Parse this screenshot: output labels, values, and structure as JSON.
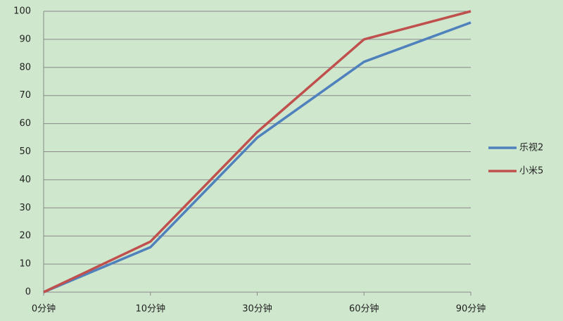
{
  "chart_data": {
    "type": "line",
    "categories": [
      "0分钟",
      "10分钟",
      "30分钟",
      "60分钟",
      "90分钟"
    ],
    "series": [
      {
        "name": "乐视2",
        "color": "#4f81bd",
        "values": [
          0,
          16,
          55,
          82,
          96
        ]
      },
      {
        "name": "小米5",
        "color": "#c0504d",
        "values": [
          0,
          18,
          57,
          90,
          100
        ]
      }
    ],
    "ylim": [
      0,
      100
    ],
    "yticks": [
      0,
      10,
      20,
      30,
      40,
      50,
      60,
      70,
      80,
      90,
      100
    ],
    "grid": true,
    "legend": "right"
  }
}
